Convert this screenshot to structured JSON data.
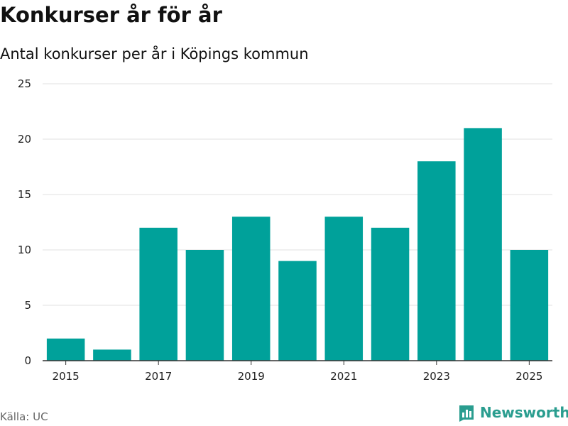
{
  "header": {
    "title": "Konkurser år för år",
    "subtitle": "Antal konkurser per år i Köpings kommun"
  },
  "footer": {
    "source": "Källa: UC",
    "brand": "Newsworthy"
  },
  "colors": {
    "bar": "#00a19a",
    "grid": "#e0e0e0",
    "axis": "#333333",
    "brand": "#2a9d8f"
  },
  "chart_data": {
    "type": "bar",
    "title": "Konkurser år för år",
    "subtitle": "Antal konkurser per år i Köpings kommun",
    "xlabel": "",
    "ylabel": "",
    "categories": [
      "2015",
      "2016",
      "2017",
      "2018",
      "2019",
      "2020",
      "2021",
      "2022",
      "2023",
      "2024",
      "2025"
    ],
    "values": [
      2,
      1,
      12,
      10,
      13,
      9,
      13,
      12,
      18,
      21,
      10
    ],
    "x_tick_labels": [
      "2015",
      "2017",
      "2019",
      "2021",
      "2023",
      "2025"
    ],
    "y_ticks": [
      0,
      5,
      10,
      15,
      20,
      25
    ],
    "ylim": [
      0,
      25
    ],
    "grid": true,
    "legend": "none"
  }
}
